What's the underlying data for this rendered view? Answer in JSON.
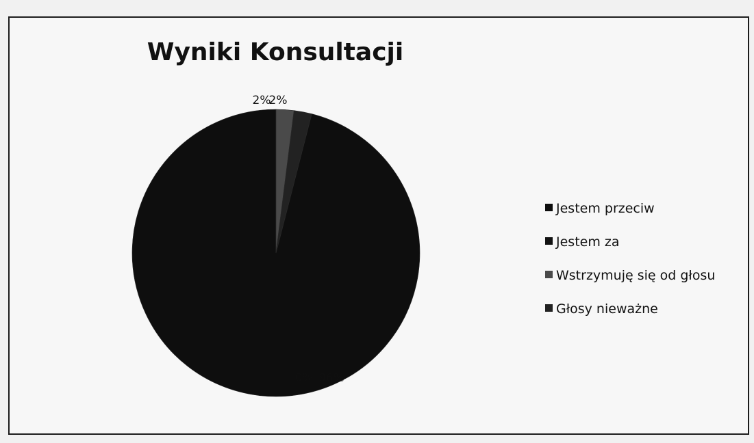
{
  "chart_data": {
    "type": "pie",
    "title": "Wyniki Konsultacji",
    "categories": [
      "Jestem przeciw",
      "Jestem za",
      "Wstrzymuję się od głosu",
      "Głosy nieważne"
    ],
    "values": [
      96,
      0,
      2,
      2
    ],
    "data_labels": [
      "96%",
      "0%",
      "2%",
      "2%"
    ],
    "colors": [
      "#0e0e0e",
      "#121212",
      "#4a4a4a",
      "#222222"
    ],
    "legend_position": "right"
  }
}
